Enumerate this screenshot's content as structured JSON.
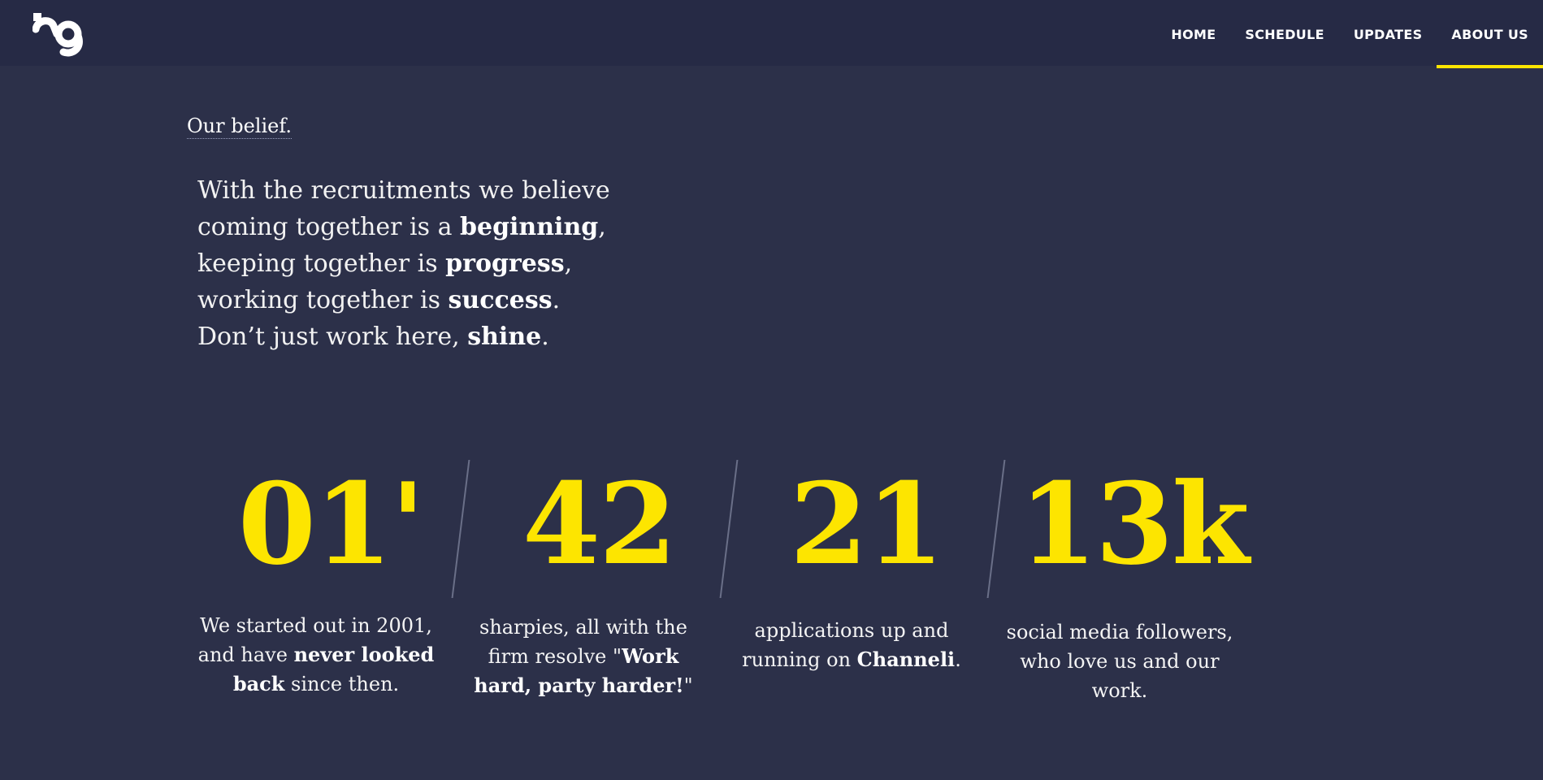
{
  "brand": {
    "logo_icon": "img-logo-icon",
    "accent": "#fde500",
    "background": "#2c3049",
    "header_background": "#262a45"
  },
  "nav": {
    "items": [
      {
        "label": "HOME",
        "active": false
      },
      {
        "label": "SCHEDULE",
        "active": false
      },
      {
        "label": "UPDATES",
        "active": false
      },
      {
        "label": "ABOUT US",
        "active": true
      }
    ]
  },
  "belief": {
    "title": "Our belief.",
    "lines": [
      {
        "pre": "With the recruitments we believe",
        "bold": "",
        "post": ""
      },
      {
        "pre": "coming together is a ",
        "bold": "beginning",
        "post": ","
      },
      {
        "pre": "keeping together is ",
        "bold": "progress",
        "post": ","
      },
      {
        "pre": "working together is ",
        "bold": "success",
        "post": "."
      },
      {
        "pre": "Don’t just work here, ",
        "bold": "shine",
        "post": "."
      }
    ]
  },
  "stats": [
    {
      "number": "01'",
      "desc": [
        {
          "pre": "We started out in 2001,",
          "bold": "",
          "post": ""
        },
        {
          "pre": "and have ",
          "bold": "never looked",
          "post": ""
        },
        {
          "pre": "",
          "bold": "back",
          "post": " since then."
        }
      ]
    },
    {
      "number": "42",
      "desc": [
        {
          "pre": "sharpies, all with the",
          "bold": "",
          "post": ""
        },
        {
          "pre": "firm resolve \"",
          "bold": "Work",
          "post": ""
        },
        {
          "pre": "",
          "bold": "hard, party harder!",
          "post": "\""
        }
      ]
    },
    {
      "number": "21",
      "desc": [
        {
          "pre": "applications up and",
          "bold": "",
          "post": ""
        },
        {
          "pre": "running on ",
          "bold": "Channeli",
          "post": "."
        }
      ]
    },
    {
      "number": "13k",
      "desc": [
        {
          "pre": "social media followers,",
          "bold": "",
          "post": ""
        },
        {
          "pre": "who love us and our",
          "bold": "",
          "post": ""
        },
        {
          "pre": "work.",
          "bold": "",
          "post": ""
        }
      ]
    }
  ]
}
